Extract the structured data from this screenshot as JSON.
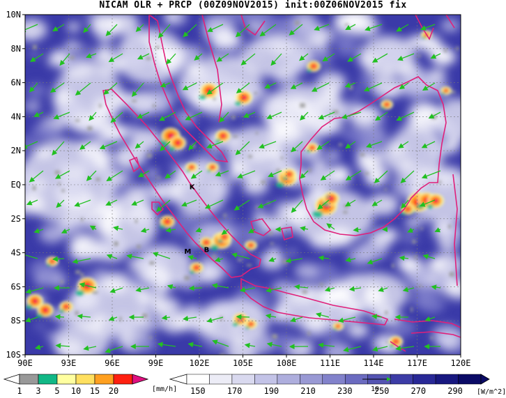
{
  "title": "NICAM OLR + PRCP (00Z09NOV2015) init:00Z06NOV2015 fix",
  "map": {
    "lon_range": [
      90,
      120
    ],
    "lat_range": [
      -10,
      10
    ],
    "x_ticks": [
      "90E",
      "93E",
      "96E",
      "99E",
      "102E",
      "105E",
      "108E",
      "111E",
      "114E",
      "117E",
      "120E"
    ],
    "y_ticks": [
      "10N",
      "8N",
      "6N",
      "4N",
      "2N",
      "EQ",
      "2S",
      "4S",
      "6S",
      "8S",
      "10S"
    ],
    "grid": true,
    "colors": {
      "boundary": "#e0207a",
      "wind_arrow": "#22c022",
      "olr_low": "#ffffff",
      "olr_high": "#10106e"
    },
    "places": [
      {
        "label": "K",
        "lon": 101.5,
        "lat": -0.1
      },
      {
        "label": "M",
        "lon": 101.2,
        "lat": -3.9
      },
      {
        "label": "B",
        "lon": 102.5,
        "lat": -3.8
      }
    ]
  },
  "prcp_colorbar": {
    "labels": [
      "1",
      "3",
      "5",
      "10",
      "15",
      "20"
    ],
    "unit": "[mm/h]",
    "colors": [
      "#999999",
      "#11b886",
      "#ffffa0",
      "#ffe060",
      "#ffa020",
      "#ff2010",
      "#e01080"
    ]
  },
  "olr_colorbar": {
    "labels": [
      "150",
      "170",
      "190",
      "210",
      "230",
      "250",
      "270",
      "290"
    ],
    "unit": "[W/m^2]",
    "colors": [
      "#ffffff",
      "#ececf6",
      "#d9d9ef",
      "#c3c3e7",
      "#aeaedd",
      "#9999d4",
      "#8282cb",
      "#6b6bc0",
      "#5454b3",
      "#3c3ca6",
      "#282896",
      "#181880",
      "#0a0a66"
    ],
    "reference_vector": "10"
  }
}
